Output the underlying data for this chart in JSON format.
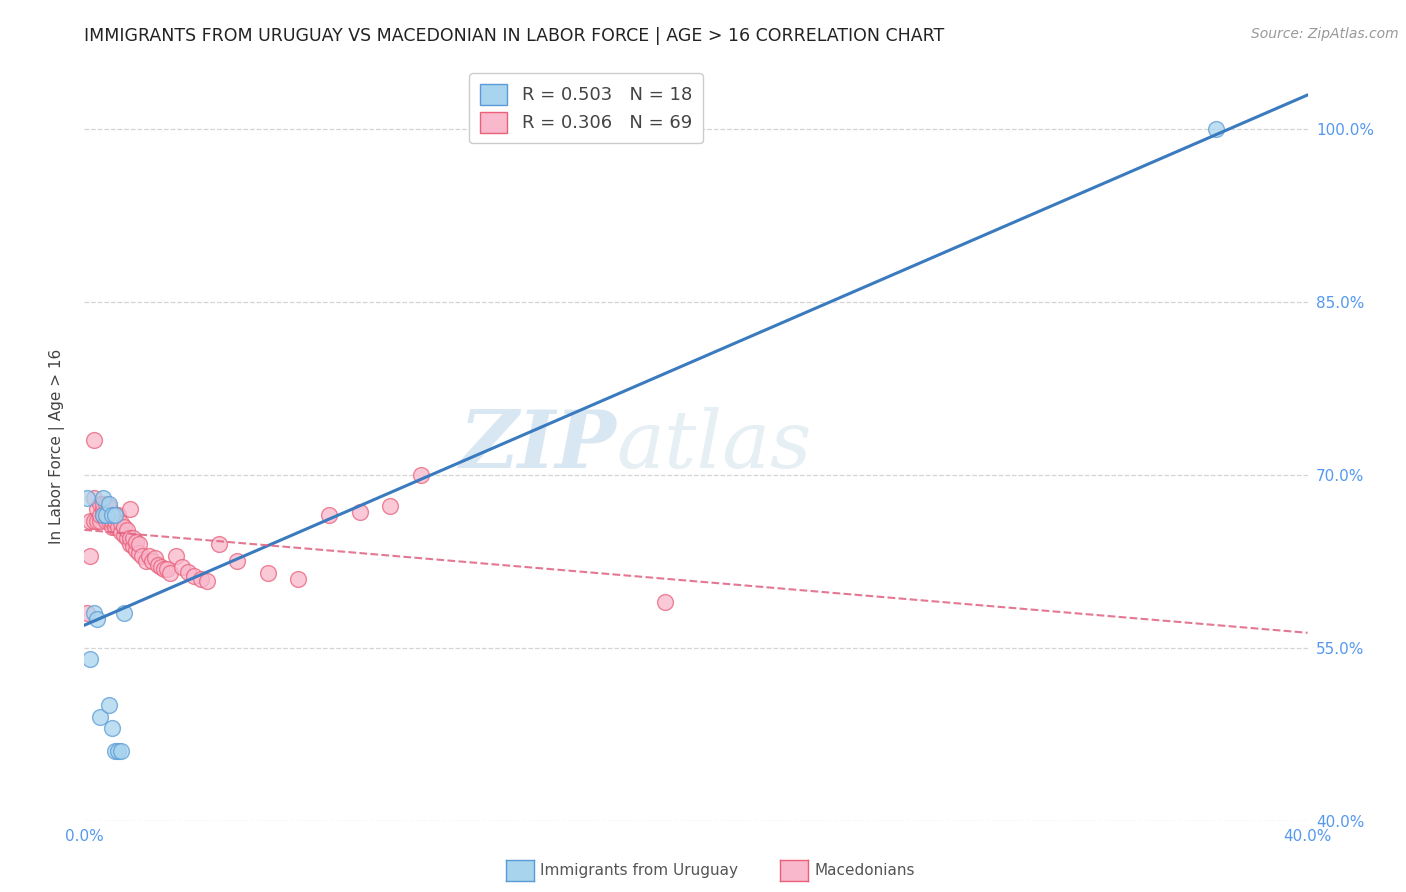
{
  "title": "IMMIGRANTS FROM URUGUAY VS MACEDONIAN IN LABOR FORCE | AGE > 16 CORRELATION CHART",
  "source": "Source: ZipAtlas.com",
  "ylabel": "In Labor Force | Age > 16",
  "xlim": [
    0.0,
    0.4
  ],
  "ylim": [
    0.4,
    1.05
  ],
  "xticks": [
    0.0,
    0.05,
    0.1,
    0.15,
    0.2,
    0.25,
    0.3,
    0.35,
    0.4
  ],
  "yticks": [
    0.4,
    0.55,
    0.7,
    0.85,
    1.0
  ],
  "yticklabels": [
    "40.0%",
    "55.0%",
    "70.0%",
    "85.0%",
    "100.0%"
  ],
  "watermark_zip": "ZIP",
  "watermark_atlas": "atlas",
  "legend1_label": "R = 0.503   N = 18",
  "legend2_label": "R = 0.306   N = 69",
  "uruguay_fill_color": "#a8d4ee",
  "uruguay_edge_color": "#5b9bd5",
  "macedonian_fill_color": "#f9b8cc",
  "macedonian_edge_color": "#e8607a",
  "uruguay_line_color": "#3a7abf",
  "macedonian_line_color": "#e06080",
  "grid_color": "#d0d0d0",
  "background_color": "#ffffff",
  "tick_color": "#5599ee",
  "uruguay_x": [
    0.001,
    0.002,
    0.003,
    0.004,
    0.005,
    0.006,
    0.006,
    0.007,
    0.008,
    0.008,
    0.009,
    0.009,
    0.01,
    0.01,
    0.011,
    0.012,
    0.013,
    0.37
  ],
  "uruguay_y": [
    0.68,
    0.54,
    0.58,
    0.575,
    0.49,
    0.68,
    0.665,
    0.665,
    0.675,
    0.5,
    0.48,
    0.665,
    0.665,
    0.46,
    0.46,
    0.46,
    0.58,
    1.0
  ],
  "macedonian_x": [
    0.001,
    0.002,
    0.002,
    0.003,
    0.003,
    0.003,
    0.004,
    0.004,
    0.005,
    0.005,
    0.005,
    0.006,
    0.006,
    0.006,
    0.007,
    0.007,
    0.007,
    0.008,
    0.008,
    0.008,
    0.008,
    0.009,
    0.009,
    0.009,
    0.01,
    0.01,
    0.01,
    0.011,
    0.011,
    0.012,
    0.012,
    0.013,
    0.013,
    0.014,
    0.014,
    0.015,
    0.015,
    0.015,
    0.016,
    0.016,
    0.017,
    0.017,
    0.018,
    0.018,
    0.019,
    0.02,
    0.021,
    0.022,
    0.023,
    0.024,
    0.025,
    0.026,
    0.027,
    0.028,
    0.03,
    0.032,
    0.034,
    0.036,
    0.038,
    0.04,
    0.044,
    0.05,
    0.06,
    0.07,
    0.08,
    0.09,
    0.1,
    0.11,
    0.19
  ],
  "macedonian_y": [
    0.58,
    0.63,
    0.66,
    0.66,
    0.68,
    0.73,
    0.66,
    0.67,
    0.66,
    0.665,
    0.675,
    0.665,
    0.67,
    0.675,
    0.66,
    0.665,
    0.675,
    0.66,
    0.665,
    0.67,
    0.672,
    0.655,
    0.66,
    0.665,
    0.655,
    0.66,
    0.665,
    0.655,
    0.665,
    0.65,
    0.658,
    0.648,
    0.655,
    0.645,
    0.652,
    0.64,
    0.645,
    0.67,
    0.638,
    0.645,
    0.635,
    0.642,
    0.632,
    0.64,
    0.63,
    0.625,
    0.63,
    0.625,
    0.628,
    0.622,
    0.62,
    0.618,
    0.618,
    0.615,
    0.63,
    0.62,
    0.616,
    0.612,
    0.61,
    0.608,
    0.64,
    0.625,
    0.615,
    0.61,
    0.665,
    0.668,
    0.673,
    0.7,
    0.59
  ]
}
